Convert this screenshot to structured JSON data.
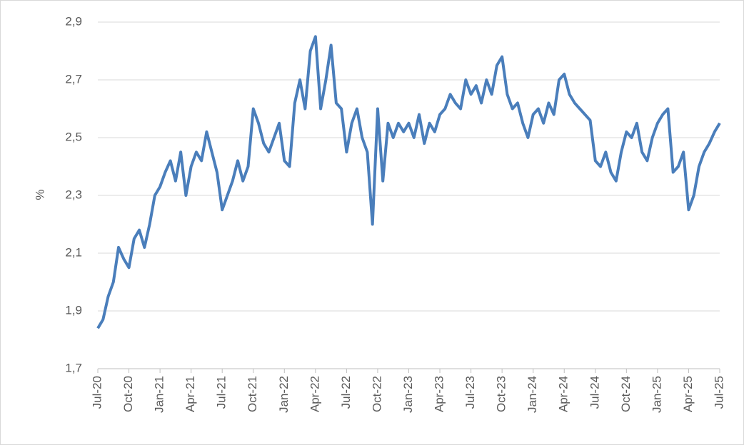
{
  "chart_data": {
    "type": "line",
    "y_label": "%",
    "categories": [
      "Jul-20",
      null,
      null,
      null,
      null,
      null,
      "Oct-20",
      null,
      null,
      null,
      null,
      null,
      "Jan-21",
      null,
      null,
      null,
      null,
      null,
      "Apr-21",
      null,
      null,
      null,
      null,
      null,
      "Jul-21",
      null,
      null,
      null,
      null,
      null,
      "Oct-21",
      null,
      null,
      null,
      null,
      null,
      "Jan-22",
      null,
      null,
      null,
      null,
      null,
      "Apr-22",
      null,
      null,
      null,
      null,
      null,
      "Jul-22",
      null,
      null,
      null,
      null,
      null,
      "Oct-22",
      null,
      null,
      null,
      null,
      null,
      "Jan-23",
      null,
      null,
      null,
      null,
      null,
      "Apr-23",
      null,
      null,
      null,
      null,
      null,
      "Jul-23",
      null,
      null,
      null,
      null,
      null,
      "Oct-23",
      null,
      null,
      null,
      null,
      null,
      "Jan-24",
      null,
      null,
      null,
      null,
      null,
      "Apr-24",
      null,
      null,
      null,
      null,
      null,
      "Jul-24",
      null,
      null,
      null,
      null,
      null,
      "Oct-24",
      null,
      null,
      null,
      null,
      null,
      "Jan-25",
      null,
      null,
      null,
      null,
      null,
      "Apr-25",
      null,
      null,
      null,
      null,
      null,
      "Jul-25"
    ],
    "series": [
      {
        "color": "#4a7ebb",
        "values": [
          1.84,
          1.87,
          1.95,
          2.0,
          2.12,
          2.08,
          2.05,
          2.15,
          2.18,
          2.12,
          2.2,
          2.3,
          2.33,
          2.38,
          2.42,
          2.35,
          2.45,
          2.3,
          2.4,
          2.45,
          2.42,
          2.52,
          2.45,
          2.38,
          2.25,
          2.3,
          2.35,
          2.42,
          2.35,
          2.4,
          2.6,
          2.55,
          2.48,
          2.45,
          2.5,
          2.55,
          2.42,
          2.4,
          2.62,
          2.7,
          2.6,
          2.8,
          2.85,
          2.6,
          2.7,
          2.82,
          2.62,
          2.6,
          2.45,
          2.55,
          2.6,
          2.5,
          2.45,
          2.2,
          2.6,
          2.35,
          2.55,
          2.5,
          2.55,
          2.52,
          2.55,
          2.5,
          2.58,
          2.48,
          2.55,
          2.52,
          2.58,
          2.6,
          2.65,
          2.62,
          2.6,
          2.7,
          2.65,
          2.68,
          2.62,
          2.7,
          2.65,
          2.75,
          2.78,
          2.65,
          2.6,
          2.62,
          2.55,
          2.5,
          2.58,
          2.6,
          2.55,
          2.62,
          2.58,
          2.7,
          2.72,
          2.65,
          2.62,
          2.6,
          2.58,
          2.56,
          2.42,
          2.4,
          2.45,
          2.38,
          2.35,
          2.45,
          2.52,
          2.5,
          2.55,
          2.45,
          2.42,
          2.5,
          2.55,
          2.58,
          2.6,
          2.38,
          2.4,
          2.45,
          2.25,
          2.3,
          2.4,
          2.45,
          2.48,
          2.52,
          2.55
        ]
      }
    ],
    "ylim": [
      1.7,
      2.9
    ],
    "yticks": [
      {
        "value": 1.7,
        "label": "1,7"
      },
      {
        "value": 1.9,
        "label": "1,9"
      },
      {
        "value": 2.1,
        "label": "2,1"
      },
      {
        "value": 2.3,
        "label": "2,3"
      },
      {
        "value": 2.5,
        "label": "2,5"
      },
      {
        "value": 2.7,
        "label": "2,7"
      },
      {
        "value": 2.9,
        "label": "2,9"
      }
    ],
    "grid": true
  }
}
